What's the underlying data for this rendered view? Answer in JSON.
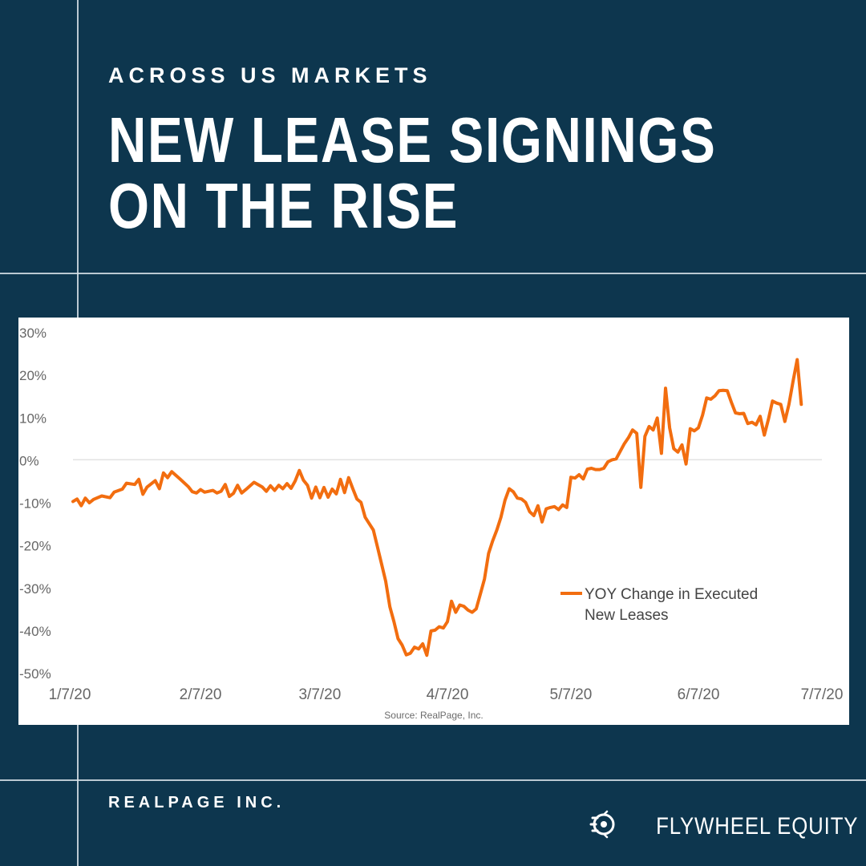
{
  "header": {
    "eyebrow": "ACROSS US MARKETS",
    "title_line1": "NEW LEASE SIGNINGS",
    "title_line2": "ON THE RISE"
  },
  "footer": {
    "source_label": "REALPAGE INC.",
    "brand_name": "FLYWHEEL EQUITY",
    "brand_icon": "flywheel-logo"
  },
  "colors": {
    "background": "#0d364e",
    "line": "#f26d0f",
    "text": "#ffffff"
  },
  "chart_data": {
    "type": "line",
    "title": "",
    "xlabel": "",
    "ylabel": "",
    "source": "Source: RealPage, Inc.",
    "ylim": [
      -50,
      30
    ],
    "y_ticks": [
      30,
      20,
      10,
      0,
      -10,
      -20,
      -30,
      -40,
      -50
    ],
    "y_tick_labels": [
      "30%",
      "20%",
      "10%",
      "0%",
      "-10%",
      "-20%",
      "-30%",
      "-40%",
      "-50%"
    ],
    "x_domain": [
      "2020-01-07",
      "2020-07-07"
    ],
    "x_ticks": [
      "2020-01-07",
      "2020-02-07",
      "2020-03-07",
      "2020-04-07",
      "2020-05-07",
      "2020-06-07",
      "2020-07-07"
    ],
    "x_tick_labels": [
      "1/7/20",
      "2/7/20",
      "3/7/20",
      "4/7/20",
      "5/7/20",
      "6/7/20",
      "7/7/20"
    ],
    "grid": "zero-line only",
    "legend_position": "lower-right",
    "series": [
      {
        "name": "YOY Change in Executed New Leases",
        "points": [
          [
            "2020-01-07",
            -9.8
          ],
          [
            "2020-01-08",
            -9.2
          ],
          [
            "2020-01-09",
            -10.8
          ],
          [
            "2020-01-10",
            -9.0
          ],
          [
            "2020-01-11",
            -10.1
          ],
          [
            "2020-01-12",
            -9.3
          ],
          [
            "2020-01-14",
            -8.5
          ],
          [
            "2020-01-16",
            -8.9
          ],
          [
            "2020-01-17",
            -7.6
          ],
          [
            "2020-01-19",
            -6.9
          ],
          [
            "2020-01-20",
            -5.5
          ],
          [
            "2020-01-22",
            -5.8
          ],
          [
            "2020-01-23",
            -4.6
          ],
          [
            "2020-01-24",
            -8.1
          ],
          [
            "2020-01-25",
            -6.4
          ],
          [
            "2020-01-27",
            -4.9
          ],
          [
            "2020-01-28",
            -6.8
          ],
          [
            "2020-01-29",
            -3.1
          ],
          [
            "2020-01-30",
            -4.2
          ],
          [
            "2020-01-31",
            -2.8
          ],
          [
            "2020-02-02",
            -4.5
          ],
          [
            "2020-02-04",
            -6.3
          ],
          [
            "2020-02-05",
            -7.5
          ],
          [
            "2020-02-06",
            -7.8
          ],
          [
            "2020-02-07",
            -7.0
          ],
          [
            "2020-02-08",
            -7.6
          ],
          [
            "2020-02-10",
            -7.2
          ],
          [
            "2020-02-11",
            -7.8
          ],
          [
            "2020-02-12",
            -7.4
          ],
          [
            "2020-02-13",
            -5.8
          ],
          [
            "2020-02-14",
            -8.6
          ],
          [
            "2020-02-15",
            -7.9
          ],
          [
            "2020-02-16",
            -6.0
          ],
          [
            "2020-02-17",
            -7.8
          ],
          [
            "2020-02-18",
            -7.0
          ],
          [
            "2020-02-20",
            -5.3
          ],
          [
            "2020-02-22",
            -6.4
          ],
          [
            "2020-02-23",
            -7.4
          ],
          [
            "2020-02-24",
            -6.1
          ],
          [
            "2020-02-25",
            -7.2
          ],
          [
            "2020-02-26",
            -6.0
          ],
          [
            "2020-02-27",
            -6.8
          ],
          [
            "2020-02-28",
            -5.6
          ],
          [
            "2020-02-29",
            -6.7
          ],
          [
            "2020-03-01",
            -5.0
          ],
          [
            "2020-03-02",
            -2.5
          ],
          [
            "2020-03-03",
            -4.8
          ],
          [
            "2020-03-04",
            -6.0
          ],
          [
            "2020-03-05",
            -9.0
          ],
          [
            "2020-03-06",
            -6.4
          ],
          [
            "2020-03-07",
            -8.9
          ],
          [
            "2020-03-08",
            -6.5
          ],
          [
            "2020-03-09",
            -8.8
          ],
          [
            "2020-03-10",
            -6.9
          ],
          [
            "2020-03-11",
            -8.0
          ],
          [
            "2020-03-12",
            -4.6
          ],
          [
            "2020-03-13",
            -7.7
          ],
          [
            "2020-03-14",
            -4.2
          ],
          [
            "2020-03-15",
            -6.8
          ],
          [
            "2020-03-16",
            -9.2
          ],
          [
            "2020-03-17",
            -10.0
          ],
          [
            "2020-03-18",
            -13.5
          ],
          [
            "2020-03-19",
            -15.0
          ],
          [
            "2020-03-20",
            -16.5
          ],
          [
            "2020-03-21",
            -20.5
          ],
          [
            "2020-03-22",
            -24.5
          ],
          [
            "2020-03-23",
            -28.5
          ],
          [
            "2020-03-24",
            -34.5
          ],
          [
            "2020-03-25",
            -38.0
          ],
          [
            "2020-03-26",
            -42.0
          ],
          [
            "2020-03-27",
            -43.5
          ],
          [
            "2020-03-28",
            -45.8
          ],
          [
            "2020-03-29",
            -45.4
          ],
          [
            "2020-03-30",
            -44.0
          ],
          [
            "2020-03-31",
            -44.4
          ],
          [
            "2020-04-01",
            -43.2
          ],
          [
            "2020-04-02",
            -45.9
          ],
          [
            "2020-04-03",
            -40.2
          ],
          [
            "2020-04-04",
            -40.0
          ],
          [
            "2020-04-05",
            -39.2
          ],
          [
            "2020-04-06",
            -39.5
          ],
          [
            "2020-04-07",
            -38.0
          ],
          [
            "2020-04-08",
            -33.2
          ],
          [
            "2020-04-09",
            -35.8
          ],
          [
            "2020-04-10",
            -34.1
          ],
          [
            "2020-04-11",
            -34.4
          ],
          [
            "2020-04-12",
            -35.3
          ],
          [
            "2020-04-13",
            -35.8
          ],
          [
            "2020-04-14",
            -35.0
          ],
          [
            "2020-04-15",
            -31.5
          ],
          [
            "2020-04-16",
            -28.0
          ],
          [
            "2020-04-17",
            -22.0
          ],
          [
            "2020-04-18",
            -19.0
          ],
          [
            "2020-04-19",
            -16.5
          ],
          [
            "2020-04-20",
            -13.5
          ],
          [
            "2020-04-21",
            -9.5
          ],
          [
            "2020-04-22",
            -6.8
          ],
          [
            "2020-04-23",
            -7.5
          ],
          [
            "2020-04-24",
            -9.0
          ],
          [
            "2020-04-25",
            -9.2
          ],
          [
            "2020-04-26",
            -10.0
          ],
          [
            "2020-04-27",
            -12.2
          ],
          [
            "2020-04-28",
            -13.1
          ],
          [
            "2020-04-29",
            -10.8
          ],
          [
            "2020-04-30",
            -14.6
          ],
          [
            "2020-05-01",
            -11.5
          ],
          [
            "2020-05-02",
            -11.2
          ],
          [
            "2020-05-03",
            -11.0
          ],
          [
            "2020-05-04",
            -11.7
          ],
          [
            "2020-05-05",
            -10.6
          ],
          [
            "2020-05-06",
            -11.2
          ],
          [
            "2020-05-07",
            -4.1
          ],
          [
            "2020-05-08",
            -4.3
          ],
          [
            "2020-05-09",
            -3.5
          ],
          [
            "2020-05-10",
            -4.5
          ],
          [
            "2020-05-11",
            -2.2
          ],
          [
            "2020-05-12",
            -2.0
          ],
          [
            "2020-05-13",
            -2.3
          ],
          [
            "2020-05-14",
            -2.3
          ],
          [
            "2020-05-15",
            -2.0
          ],
          [
            "2020-05-16",
            -0.5
          ],
          [
            "2020-05-17",
            0.0
          ],
          [
            "2020-05-18",
            0.2
          ],
          [
            "2020-05-19",
            2.0
          ],
          [
            "2020-05-20",
            3.8
          ],
          [
            "2020-05-21",
            5.2
          ],
          [
            "2020-05-22",
            7.0
          ],
          [
            "2020-05-23",
            6.2
          ],
          [
            "2020-05-24",
            -6.5
          ],
          [
            "2020-05-25",
            5.5
          ],
          [
            "2020-05-26",
            7.8
          ],
          [
            "2020-05-27",
            7.0
          ],
          [
            "2020-05-28",
            9.8
          ],
          [
            "2020-05-29",
            1.5
          ],
          [
            "2020-05-30",
            16.8
          ],
          [
            "2020-05-31",
            7.5
          ],
          [
            "2020-06-01",
            2.6
          ],
          [
            "2020-06-02",
            1.8
          ],
          [
            "2020-06-03",
            3.5
          ],
          [
            "2020-06-04",
            -1.0
          ],
          [
            "2020-06-05",
            7.3
          ],
          [
            "2020-06-06",
            6.8
          ],
          [
            "2020-06-07",
            7.5
          ],
          [
            "2020-06-08",
            10.5
          ],
          [
            "2020-06-09",
            14.5
          ],
          [
            "2020-06-10",
            14.2
          ],
          [
            "2020-06-11",
            15.0
          ],
          [
            "2020-06-12",
            16.2
          ],
          [
            "2020-06-13",
            16.3
          ],
          [
            "2020-06-14",
            16.2
          ],
          [
            "2020-06-15",
            13.5
          ],
          [
            "2020-06-16",
            11.0
          ],
          [
            "2020-06-17",
            10.8
          ],
          [
            "2020-06-18",
            10.9
          ],
          [
            "2020-06-19",
            8.5
          ],
          [
            "2020-06-20",
            8.8
          ],
          [
            "2020-06-21",
            8.2
          ],
          [
            "2020-06-22",
            10.2
          ],
          [
            "2020-06-23",
            5.8
          ],
          [
            "2020-06-24",
            9.5
          ],
          [
            "2020-06-25",
            13.8
          ],
          [
            "2020-06-26",
            13.3
          ],
          [
            "2020-06-27",
            13.0
          ],
          [
            "2020-06-28",
            9.0
          ],
          [
            "2020-06-29",
            13.0
          ],
          [
            "2020-06-30",
            18.5
          ],
          [
            "2020-07-01",
            23.5
          ],
          [
            "2020-07-02",
            13.0
          ]
        ]
      }
    ]
  }
}
